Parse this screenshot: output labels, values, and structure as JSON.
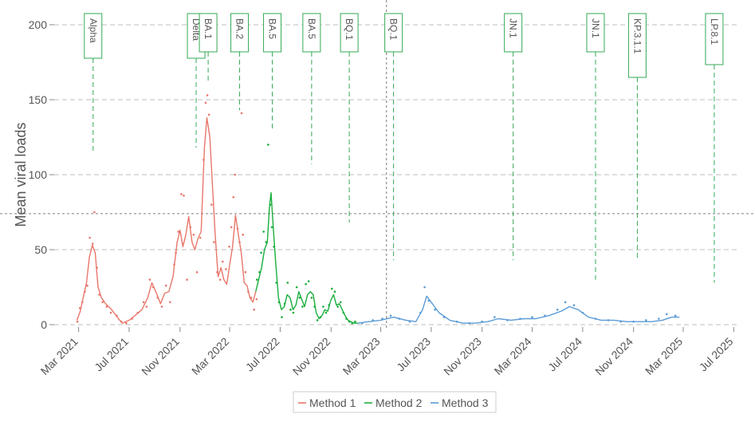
{
  "chart_data": {
    "type": "line",
    "title": "",
    "xlabel": "",
    "ylabel": "Mean viral loads",
    "ylim": [
      0,
      200
    ],
    "yticks": [
      0,
      50,
      100,
      150,
      200
    ],
    "xlim": [
      "2021-01-01",
      "2025-07-10"
    ],
    "xticks": [
      {
        "date": "2021-03-01",
        "label": "Mar 2021"
      },
      {
        "date": "2021-07-01",
        "label": "Jul 2021"
      },
      {
        "date": "2021-11-01",
        "label": "Nov 2021"
      },
      {
        "date": "2022-03-01",
        "label": "Mar 2022"
      },
      {
        "date": "2022-07-01",
        "label": "Jul 2022"
      },
      {
        "date": "2022-11-01",
        "label": "Nov 2022"
      },
      {
        "date": "2023-03-01",
        "label": "Mar 2023"
      },
      {
        "date": "2023-07-01",
        "label": "Jul 2023"
      },
      {
        "date": "2023-11-01",
        "label": "Nov 2023"
      },
      {
        "date": "2024-03-01",
        "label": "Mar 2024"
      },
      {
        "date": "2024-07-01",
        "label": "Jul 2024"
      },
      {
        "date": "2024-11-01",
        "label": "Nov 2024"
      },
      {
        "date": "2025-03-01",
        "label": "Mar 2025"
      },
      {
        "date": "2025-07-01",
        "label": "Jul 2025"
      }
    ],
    "grid": true,
    "legend_position": "bottom",
    "series": [
      {
        "name": "Method 1",
        "color": "#e8776b",
        "points": [
          [
            "2021-02-25",
            3
          ],
          [
            "2021-03-05",
            9
          ],
          [
            "2021-03-12",
            18
          ],
          [
            "2021-03-20",
            28
          ],
          [
            "2021-03-27",
            45
          ],
          [
            "2021-04-03",
            53
          ],
          [
            "2021-04-10",
            48
          ],
          [
            "2021-04-17",
            25
          ],
          [
            "2021-04-25",
            18
          ],
          [
            "2021-05-05",
            14
          ],
          [
            "2021-05-20",
            10
          ],
          [
            "2021-06-05",
            4
          ],
          [
            "2021-06-15",
            1
          ],
          [
            "2021-07-01",
            3
          ],
          [
            "2021-07-15",
            6
          ],
          [
            "2021-08-01",
            10
          ],
          [
            "2021-08-15",
            18
          ],
          [
            "2021-08-25",
            28
          ],
          [
            "2021-09-05",
            21
          ],
          [
            "2021-09-15",
            14
          ],
          [
            "2021-09-25",
            21
          ],
          [
            "2021-10-05",
            22
          ],
          [
            "2021-10-15",
            32
          ],
          [
            "2021-10-25",
            55
          ],
          [
            "2021-11-01",
            63
          ],
          [
            "2021-11-08",
            52
          ],
          [
            "2021-11-15",
            60
          ],
          [
            "2021-11-22",
            72
          ],
          [
            "2021-11-30",
            55
          ],
          [
            "2021-12-07",
            50
          ],
          [
            "2021-12-15",
            58
          ],
          [
            "2021-12-22",
            62
          ],
          [
            "2021-12-30",
            118
          ],
          [
            "2022-01-05",
            138
          ],
          [
            "2022-01-12",
            125
          ],
          [
            "2022-01-18",
            95
          ],
          [
            "2022-01-25",
            60
          ],
          [
            "2022-02-01",
            32
          ],
          [
            "2022-02-08",
            38
          ],
          [
            "2022-02-15",
            30
          ],
          [
            "2022-02-22",
            27
          ],
          [
            "2022-03-01",
            40
          ],
          [
            "2022-03-08",
            52
          ],
          [
            "2022-03-15",
            73
          ],
          [
            "2022-03-22",
            60
          ],
          [
            "2022-03-29",
            48
          ],
          [
            "2022-04-05",
            28
          ],
          [
            "2022-04-12",
            26
          ],
          [
            "2022-04-19",
            18
          ],
          [
            "2022-04-26",
            15
          ],
          [
            "2022-05-03",
            22
          ]
        ],
        "scatter": [
          [
            "2021-02-26",
            2
          ],
          [
            "2021-03-04",
            11
          ],
          [
            "2021-03-10",
            15
          ],
          [
            "2021-03-16",
            22
          ],
          [
            "2021-03-22",
            26
          ],
          [
            "2021-03-28",
            58
          ],
          [
            "2021-04-04",
            54
          ],
          [
            "2021-04-08",
            75
          ],
          [
            "2021-04-14",
            38
          ],
          [
            "2021-04-20",
            20
          ],
          [
            "2021-04-28",
            15
          ],
          [
            "2021-05-08",
            12
          ],
          [
            "2021-05-18",
            8
          ],
          [
            "2021-06-01",
            6
          ],
          [
            "2021-06-12",
            2
          ],
          [
            "2021-06-24",
            1
          ],
          [
            "2021-07-08",
            4
          ],
          [
            "2021-07-22",
            8
          ],
          [
            "2021-08-05",
            15
          ],
          [
            "2021-08-12",
            12
          ],
          [
            "2021-08-20",
            30
          ],
          [
            "2021-08-28",
            25
          ],
          [
            "2021-09-08",
            18
          ],
          [
            "2021-09-18",
            12
          ],
          [
            "2021-09-28",
            26
          ],
          [
            "2021-10-08",
            15
          ],
          [
            "2021-10-18",
            40
          ],
          [
            "2021-10-22",
            48
          ],
          [
            "2021-10-28",
            62
          ],
          [
            "2021-11-04",
            87
          ],
          [
            "2021-11-10",
            86
          ],
          [
            "2021-11-18",
            30
          ],
          [
            "2021-11-26",
            65
          ],
          [
            "2021-12-04",
            60
          ],
          [
            "2021-12-12",
            35
          ],
          [
            "2021-12-20",
            58
          ],
          [
            "2021-12-28",
            110
          ],
          [
            "2022-01-02",
            148
          ],
          [
            "2022-01-06",
            153
          ],
          [
            "2022-01-10",
            140
          ],
          [
            "2022-01-16",
            80
          ],
          [
            "2022-01-22",
            55
          ],
          [
            "2022-01-30",
            35
          ],
          [
            "2022-02-06",
            30
          ],
          [
            "2022-02-12",
            42
          ],
          [
            "2022-02-20",
            37
          ],
          [
            "2022-02-28",
            52
          ],
          [
            "2022-03-05",
            65
          ],
          [
            "2022-03-10",
            85
          ],
          [
            "2022-03-14",
            100
          ],
          [
            "2022-03-20",
            64
          ],
          [
            "2022-03-25",
            55
          ],
          [
            "2022-03-30",
            141
          ],
          [
            "2022-04-02",
            60
          ],
          [
            "2022-04-08",
            35
          ],
          [
            "2022-04-15",
            22
          ],
          [
            "2022-04-22",
            18
          ],
          [
            "2022-04-29",
            10
          ],
          [
            "2022-05-05",
            17
          ]
        ]
      },
      {
        "name": "Method 2",
        "color": "#1aae3c",
        "points": [
          [
            "2022-05-03",
            22
          ],
          [
            "2022-05-10",
            30
          ],
          [
            "2022-05-17",
            38
          ],
          [
            "2022-05-24",
            50
          ],
          [
            "2022-05-31",
            55
          ],
          [
            "2022-06-05",
            78
          ],
          [
            "2022-06-09",
            88
          ],
          [
            "2022-06-13",
            70
          ],
          [
            "2022-06-20",
            42
          ],
          [
            "2022-06-27",
            18
          ],
          [
            "2022-07-04",
            10
          ],
          [
            "2022-07-11",
            12
          ],
          [
            "2022-07-18",
            20
          ],
          [
            "2022-07-25",
            18
          ],
          [
            "2022-08-01",
            10
          ],
          [
            "2022-08-08",
            13
          ],
          [
            "2022-08-15",
            22
          ],
          [
            "2022-08-22",
            17
          ],
          [
            "2022-08-29",
            12
          ],
          [
            "2022-09-05",
            20
          ],
          [
            "2022-09-12",
            22
          ],
          [
            "2022-09-19",
            20
          ],
          [
            "2022-09-26",
            8
          ],
          [
            "2022-10-03",
            4
          ],
          [
            "2022-10-10",
            6
          ],
          [
            "2022-10-17",
            10
          ],
          [
            "2022-10-24",
            9
          ],
          [
            "2022-10-31",
            16
          ],
          [
            "2022-11-07",
            20
          ],
          [
            "2022-11-14",
            13
          ],
          [
            "2022-11-21",
            14
          ],
          [
            "2022-11-28",
            10
          ],
          [
            "2022-12-05",
            6
          ],
          [
            "2022-12-12",
            3
          ],
          [
            "2022-12-19",
            2
          ],
          [
            "2022-12-26",
            1
          ],
          [
            "2023-01-05",
            1
          ]
        ],
        "scatter": [
          [
            "2022-05-06",
            30
          ],
          [
            "2022-05-12",
            35
          ],
          [
            "2022-05-16",
            48
          ],
          [
            "2022-05-22",
            62
          ],
          [
            "2022-05-28",
            55
          ],
          [
            "2022-06-02",
            120
          ],
          [
            "2022-06-07",
            80
          ],
          [
            "2022-06-11",
            65
          ],
          [
            "2022-06-16",
            52
          ],
          [
            "2022-06-22",
            28
          ],
          [
            "2022-06-28",
            15
          ],
          [
            "2022-07-05",
            5
          ],
          [
            "2022-07-12",
            14
          ],
          [
            "2022-07-19",
            28
          ],
          [
            "2022-07-26",
            10
          ],
          [
            "2022-08-02",
            8
          ],
          [
            "2022-08-10",
            25
          ],
          [
            "2022-08-17",
            18
          ],
          [
            "2022-08-24",
            12
          ],
          [
            "2022-09-01",
            27
          ],
          [
            "2022-09-08",
            29
          ],
          [
            "2022-09-15",
            18
          ],
          [
            "2022-09-22",
            12
          ],
          [
            "2022-09-29",
            3
          ],
          [
            "2022-10-06",
            5
          ],
          [
            "2022-10-13",
            12
          ],
          [
            "2022-10-20",
            8
          ],
          [
            "2022-10-27",
            13
          ],
          [
            "2022-11-03",
            24
          ],
          [
            "2022-11-10",
            22
          ],
          [
            "2022-11-17",
            12
          ],
          [
            "2022-11-24",
            15
          ],
          [
            "2022-12-01",
            8
          ],
          [
            "2022-12-08",
            4
          ],
          [
            "2022-12-15",
            2
          ],
          [
            "2022-12-22",
            1
          ],
          [
            "2022-12-29",
            2
          ]
        ]
      },
      {
        "name": "Method 3",
        "color": "#5b9bd5",
        "points": [
          [
            "2023-01-05",
            1
          ],
          [
            "2023-02-01",
            2
          ],
          [
            "2023-03-01",
            3
          ],
          [
            "2023-04-01",
            5
          ],
          [
            "2023-05-01",
            3
          ],
          [
            "2023-05-25",
            2
          ],
          [
            "2023-06-10",
            10
          ],
          [
            "2023-06-20",
            19
          ],
          [
            "2023-07-01",
            15
          ],
          [
            "2023-07-20",
            8
          ],
          [
            "2023-08-15",
            3
          ],
          [
            "2023-09-15",
            1
          ],
          [
            "2023-10-15",
            1
          ],
          [
            "2023-11-15",
            2
          ],
          [
            "2023-12-10",
            4
          ],
          [
            "2024-01-10",
            3
          ],
          [
            "2024-02-10",
            4
          ],
          [
            "2024-03-10",
            4
          ],
          [
            "2024-04-10",
            6
          ],
          [
            "2024-05-10",
            9
          ],
          [
            "2024-05-30",
            12
          ],
          [
            "2024-06-20",
            10
          ],
          [
            "2024-07-15",
            5
          ],
          [
            "2024-08-15",
            3
          ],
          [
            "2024-09-15",
            3
          ],
          [
            "2024-10-15",
            2
          ],
          [
            "2024-11-15",
            2
          ],
          [
            "2024-12-15",
            2
          ],
          [
            "2025-01-10",
            3
          ],
          [
            "2025-02-01",
            5
          ],
          [
            "2025-02-20",
            5
          ]
        ],
        "scatter": [
          [
            "2023-01-15",
            1
          ],
          [
            "2023-02-10",
            3
          ],
          [
            "2023-03-05",
            4
          ],
          [
            "2023-03-25",
            6
          ],
          [
            "2023-04-15",
            4
          ],
          [
            "2023-05-10",
            2
          ],
          [
            "2023-06-05",
            8
          ],
          [
            "2023-06-15",
            25
          ],
          [
            "2023-06-25",
            16
          ],
          [
            "2023-07-10",
            10
          ],
          [
            "2023-08-01",
            5
          ],
          [
            "2023-09-01",
            2
          ],
          [
            "2023-10-01",
            1
          ],
          [
            "2023-11-01",
            2
          ],
          [
            "2023-12-01",
            5
          ],
          [
            "2024-01-01",
            3
          ],
          [
            "2024-02-01",
            4
          ],
          [
            "2024-03-01",
            5
          ],
          [
            "2024-04-01",
            6
          ],
          [
            "2024-05-01",
            10
          ],
          [
            "2024-05-20",
            15
          ],
          [
            "2024-06-10",
            13
          ],
          [
            "2024-07-01",
            8
          ],
          [
            "2024-08-01",
            4
          ],
          [
            "2024-09-01",
            3
          ],
          [
            "2024-10-01",
            2
          ],
          [
            "2024-11-01",
            2
          ],
          [
            "2024-12-01",
            3
          ],
          [
            "2025-01-01",
            4
          ],
          [
            "2025-01-20",
            7
          ],
          [
            "2025-02-10",
            6
          ]
        ]
      }
    ],
    "annotations": [
      {
        "label": "Alpha",
        "date": "2021-04-05",
        "line_top": 200,
        "line_bottom": 115
      },
      {
        "label": "Delta",
        "date": "2021-12-10",
        "line_top": 200,
        "line_bottom": 118
      },
      {
        "label": "BA.1",
        "date": "2022-01-08",
        "line_top": 200,
        "line_bottom": 162
      },
      {
        "label": "BA.2",
        "date": "2022-03-25",
        "line_top": 200,
        "line_bottom": 143
      },
      {
        "label": "BA.5",
        "date": "2022-06-12",
        "line_top": 200,
        "line_bottom": 130
      },
      {
        "label": "BA.5",
        "date": "2022-09-15",
        "line_top": 200,
        "line_bottom": 107
      },
      {
        "label": "BQ.1",
        "date": "2022-12-15",
        "line_top": 200,
        "line_bottom": 68
      },
      {
        "label": "BQ.1",
        "date": "2023-04-01",
        "line_top": 200,
        "line_bottom": 43
      },
      {
        "label": "JN.1",
        "date": "2024-01-15",
        "line_top": 200,
        "line_bottom": 43
      },
      {
        "label": "JN.1",
        "date": "2024-08-01",
        "line_top": 200,
        "line_bottom": 30
      },
      {
        "label": "KP.3.1.1",
        "date": "2024-11-10",
        "line_top": 200,
        "line_bottom": 43
      },
      {
        "label": "LP.8.1",
        "date": "2025-05-15",
        "line_top": 200,
        "line_bottom": 28
      }
    ],
    "legend": [
      "Method 1",
      "Method 2",
      "Method 3"
    ]
  }
}
